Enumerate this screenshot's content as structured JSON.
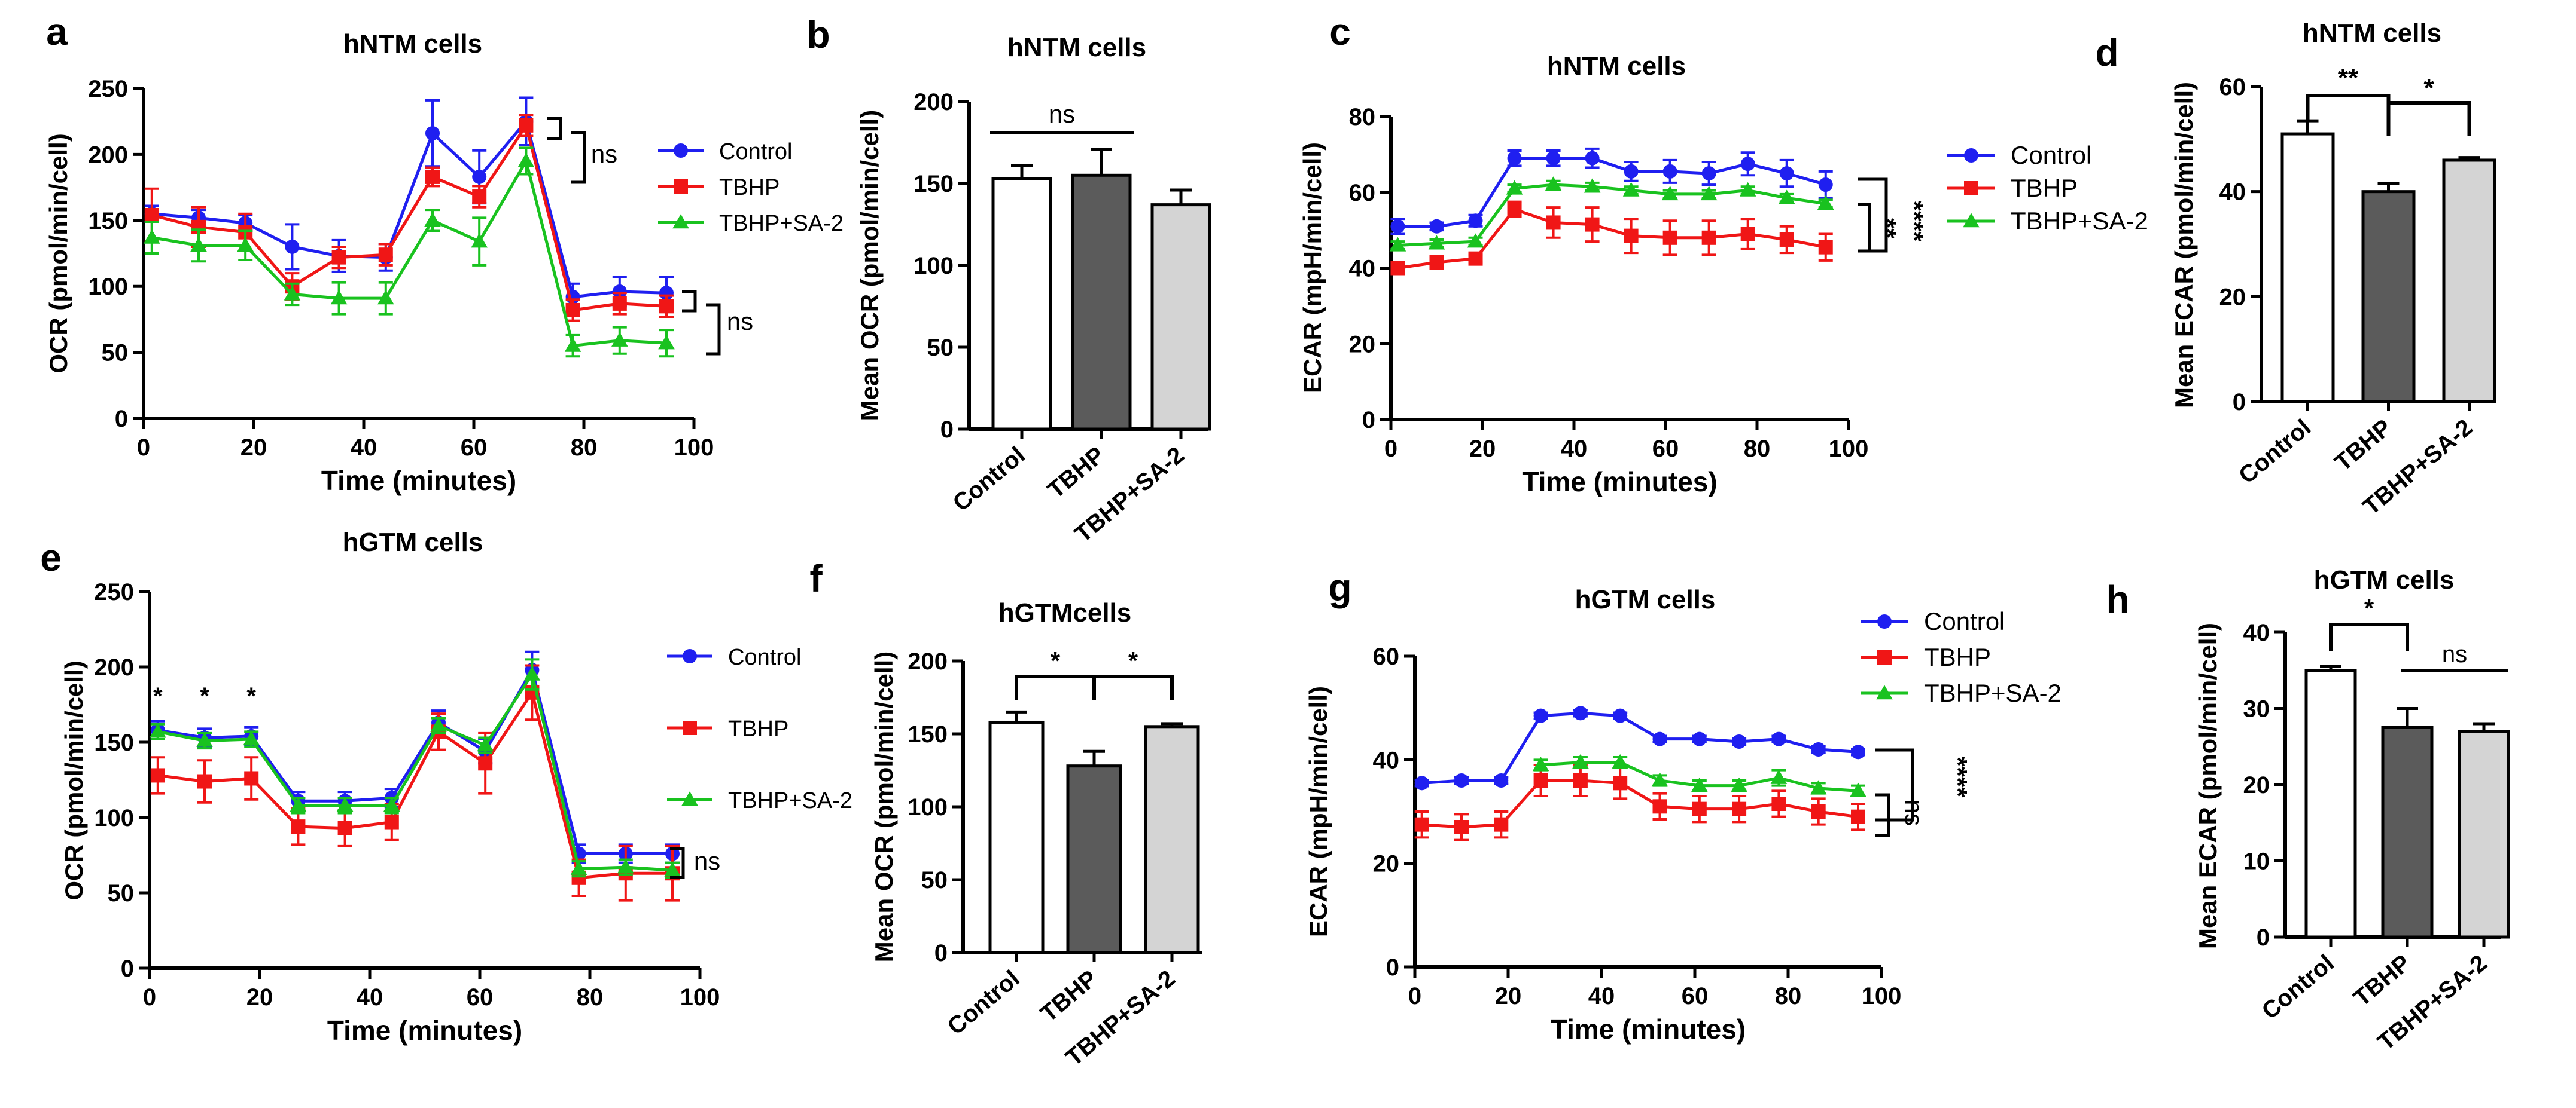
{
  "colors": {
    "control": "#1f1ff0",
    "tbhp": "#f01616",
    "sa2": "#19c21f",
    "black": "#000000",
    "dark_bar": "#5b5b5b",
    "light_bar": "#d4d4d4"
  },
  "chart_data": [
    {
      "id": "a",
      "type": "line",
      "panel_letter": "a",
      "title": "hNTM cells",
      "xlabel": "Time (minutes)",
      "ylabel": "OCR (pmol/min/cell)",
      "xlim": [
        0,
        100
      ],
      "ylim": [
        0,
        250
      ],
      "xticks": [
        "0",
        "20",
        "40",
        "60",
        "80",
        "100"
      ],
      "yticks": [
        "0",
        "50",
        "100",
        "150",
        "200",
        "250"
      ],
      "x": [
        1.5,
        10,
        18.5,
        27,
        35.5,
        44,
        52.5,
        61,
        69.5,
        78,
        86.5,
        95
      ],
      "series": [
        {
          "name": "Control",
          "color_key": "control",
          "marker": "circle",
          "values": [
            155,
            152,
            148,
            130,
            123,
            122,
            216,
            183,
            225,
            92,
            96,
            95
          ],
          "errors": [
            6,
            6,
            6,
            17,
            12,
            10,
            25,
            20,
            18,
            10,
            11,
            12
          ]
        },
        {
          "name": "TBHP",
          "color_key": "tbhp",
          "marker": "square",
          "values": [
            154,
            145,
            141,
            100,
            122,
            124,
            183,
            168,
            222,
            82,
            87,
            85
          ],
          "errors": [
            20,
            15,
            14,
            10,
            8,
            8,
            7,
            8,
            8,
            8,
            8,
            8
          ]
        },
        {
          "name": "TBHP+SA-2",
          "color_key": "sa2",
          "marker": "triangle",
          "values": [
            137,
            131,
            131,
            94,
            91,
            91,
            150,
            134,
            195,
            55,
            59,
            57
          ],
          "errors": [
            12,
            12,
            11,
            8,
            12,
            12,
            8,
            18,
            10,
            8,
            10,
            10
          ]
        }
      ],
      "annotations": [
        "ns",
        "ns"
      ]
    },
    {
      "id": "b",
      "type": "bar",
      "panel_letter": "b",
      "title": "hNTM cells",
      "ylabel": "Mean OCR (pmol/min/cell)",
      "ylim": [
        0,
        200
      ],
      "yticks": [
        "0",
        "50",
        "100",
        "150",
        "200"
      ],
      "categories": [
        "Control",
        "TBHP",
        "TBHP+SA-2"
      ],
      "values": [
        153,
        155,
        137
      ],
      "errors": [
        8,
        16,
        9
      ],
      "annotations": [
        "ns"
      ]
    },
    {
      "id": "c",
      "type": "line",
      "panel_letter": "c",
      "title": "hNTM cells",
      "xlabel": "Time (minutes)",
      "ylabel": "ECAR (mpH/min/cell)",
      "xlim": [
        0,
        100
      ],
      "ylim": [
        0,
        80
      ],
      "xticks": [
        "0",
        "20",
        "40",
        "60",
        "80",
        "100"
      ],
      "yticks": [
        "0",
        "20",
        "40",
        "60",
        "80"
      ],
      "x": [
        1.5,
        10,
        18.5,
        27,
        35.5,
        44,
        52.5,
        61,
        69.5,
        78,
        86.5,
        95
      ],
      "series": [
        {
          "name": "Control",
          "color_key": "control",
          "marker": "circle",
          "values": [
            51,
            51,
            52.5,
            69,
            69,
            69,
            65.5,
            65.5,
            65,
            67.5,
            65,
            62
          ],
          "errors": [
            2,
            1,
            1.5,
            2,
            2,
            2.5,
            2.5,
            3,
            3,
            3,
            3.5,
            3.5
          ]
        },
        {
          "name": "TBHP",
          "color_key": "tbhp",
          "marker": "square",
          "values": [
            40,
            41.5,
            42.5,
            55.5,
            52,
            51.5,
            48.5,
            48,
            48,
            49,
            47.5,
            45.5
          ],
          "errors": [
            1,
            1,
            1,
            2,
            4,
            4.5,
            4.5,
            4.5,
            4.5,
            4,
            3.5,
            3.5
          ]
        },
        {
          "name": "TBHP+SA-2",
          "color_key": "sa2",
          "marker": "triangle",
          "values": [
            46,
            46.5,
            47,
            61,
            62,
            61.5,
            60.5,
            59.5,
            59.5,
            60.5,
            58.5,
            57
          ],
          "errors": [
            1,
            1,
            1,
            1,
            1,
            1,
            1,
            1,
            1,
            1,
            1,
            1
          ]
        }
      ],
      "annotations": [
        "**",
        "****"
      ]
    },
    {
      "id": "d",
      "type": "bar",
      "panel_letter": "d",
      "title": "hNTM cells",
      "ylabel": "Mean ECAR (pmol/min/cell)",
      "ylim": [
        0,
        60
      ],
      "yticks": [
        "0",
        "20",
        "40",
        "60"
      ],
      "categories": [
        "Control",
        "TBHP",
        "TBHP+SA-2"
      ],
      "values": [
        51,
        40,
        46
      ],
      "errors": [
        2.5,
        1.5,
        0.5
      ],
      "annotations": [
        "**",
        "*"
      ]
    },
    {
      "id": "e",
      "type": "line",
      "panel_letter": "e",
      "title": "hGTM cells",
      "xlabel": "Time (minutes)",
      "ylabel": "OCR (pmol/min/cell)",
      "xlim": [
        0,
        100
      ],
      "ylim": [
        0,
        250
      ],
      "xticks": [
        "0",
        "20",
        "40",
        "60",
        "80",
        "100"
      ],
      "yticks": [
        "0",
        "50",
        "100",
        "150",
        "200",
        "250"
      ],
      "x": [
        1.5,
        10,
        18.5,
        27,
        35.5,
        44,
        52.5,
        61,
        69.5,
        78,
        86.5,
        95
      ],
      "series": [
        {
          "name": "Control",
          "color_key": "control",
          "marker": "circle",
          "values": [
            158,
            153,
            154,
            111,
            111,
            113,
            163,
            144,
            198,
            76,
            76,
            76
          ],
          "errors": [
            6,
            6,
            6,
            6,
            6,
            6,
            8,
            8,
            12,
            6,
            6,
            6
          ]
        },
        {
          "name": "TBHP",
          "color_key": "tbhp",
          "marker": "square",
          "values": [
            128,
            124,
            126,
            94,
            93,
            97,
            157,
            136,
            183,
            60,
            63,
            63
          ],
          "errors": [
            12,
            14,
            14,
            12,
            12,
            12,
            12,
            20,
            18,
            12,
            18,
            18
          ]
        },
        {
          "name": "TBHP+SA-2",
          "color_key": "sa2",
          "marker": "triangle",
          "values": [
            157,
            151,
            152,
            108,
            108,
            108,
            161,
            148,
            195,
            66,
            67,
            65
          ],
          "errors": [
            5,
            5,
            5,
            5,
            5,
            5,
            5,
            5,
            10,
            5,
            5,
            5
          ]
        }
      ],
      "annotations": [
        "*",
        "*",
        "*",
        "ns"
      ]
    },
    {
      "id": "f",
      "type": "bar",
      "panel_letter": "f",
      "title": "hGTMcells",
      "ylabel": "Mean OCR (pmol/min/cell)",
      "ylim": [
        0,
        200
      ],
      "yticks": [
        "0",
        "50",
        "100",
        "150",
        "200"
      ],
      "categories": [
        "Control",
        "TBHP",
        "TBHP+SA-2"
      ],
      "values": [
        158,
        128,
        155
      ],
      "errors": [
        7,
        10,
        2
      ],
      "annotations": [
        "*",
        "*"
      ]
    },
    {
      "id": "g",
      "type": "line",
      "panel_letter": "g",
      "title": "hGTM cells",
      "xlabel": "Time (minutes)",
      "ylabel": "ECAR (mpH/min/cell)",
      "xlim": [
        0,
        100
      ],
      "ylim": [
        0,
        60
      ],
      "xticks": [
        "0",
        "20",
        "40",
        "60",
        "80",
        "100"
      ],
      "yticks": [
        "0",
        "20",
        "40",
        "60"
      ],
      "x": [
        1.5,
        10,
        18.5,
        27,
        35.5,
        44,
        52.5,
        61,
        69.5,
        78,
        86.5,
        95
      ],
      "series": [
        {
          "name": "Control",
          "color_key": "control",
          "marker": "circle",
          "values": [
            35.5,
            36,
            36,
            48.5,
            49,
            48.5,
            44,
            44,
            43.5,
            44,
            42,
            41.5
          ],
          "errors": [
            0.6,
            0.6,
            0.6,
            0.6,
            0.6,
            0.6,
            0.6,
            0.6,
            0.6,
            0.6,
            0.6,
            0.6
          ]
        },
        {
          "name": "TBHP",
          "color_key": "tbhp",
          "marker": "square",
          "values": [
            27.5,
            27,
            27.5,
            36,
            36,
            35.5,
            31,
            30.5,
            30.5,
            31.5,
            30,
            29
          ],
          "errors": [
            2.5,
            2.5,
            2.5,
            3,
            3,
            3,
            2.5,
            2.5,
            2.5,
            2.5,
            2.5,
            2.5
          ]
        },
        {
          "name": "TBHP+SA-2",
          "color_key": "sa2",
          "marker": "triangle",
          "values": [
            null,
            null,
            null,
            39,
            39.5,
            39.5,
            36,
            35,
            35,
            36.5,
            34.5,
            34
          ],
          "errors": [
            0,
            0,
            0,
            1,
            1,
            1,
            1,
            1,
            1,
            1.5,
            1,
            1
          ]
        }
      ],
      "annotations": [
        "ns",
        "****"
      ]
    },
    {
      "id": "h",
      "type": "bar",
      "panel_letter": "h",
      "title": "hGTM cells",
      "ylabel": "Mean ECAR (pmol/min/cell)",
      "ylim": [
        0,
        40
      ],
      "yticks": [
        "0",
        "10",
        "20",
        "30",
        "40"
      ],
      "categories": [
        "Control",
        "TBHP",
        "TBHP+SA-2"
      ],
      "values": [
        35,
        27.5,
        27
      ],
      "errors": [
        0.5,
        2.5,
        1
      ],
      "annotations": [
        "*",
        "ns"
      ]
    }
  ]
}
